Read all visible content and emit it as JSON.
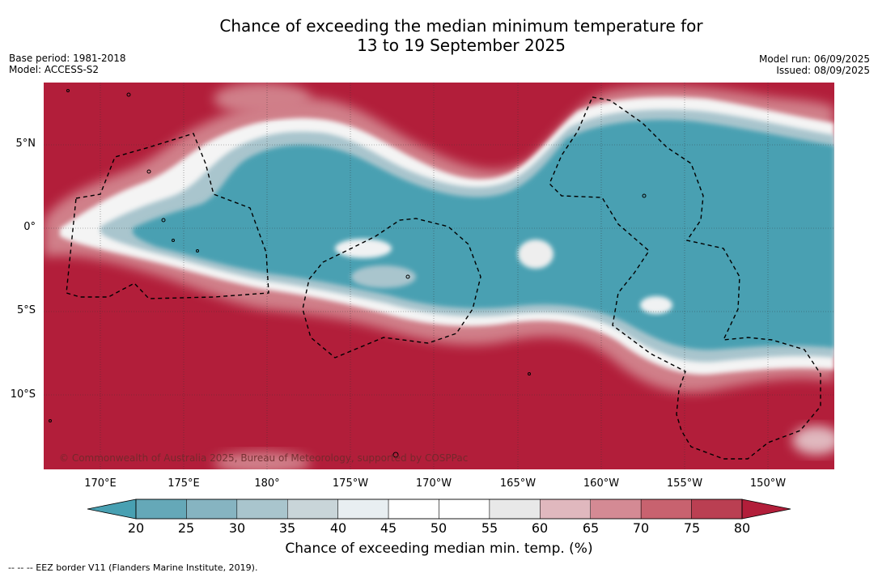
{
  "title": {
    "line1": "Chance of exceeding the median minimum temperature for",
    "line2": "13 to 19 September 2025"
  },
  "meta": {
    "base_period": "Base period: 1981-2018",
    "model": "Model: ACCESS-S2",
    "model_run": "Model run: 06/09/2025",
    "issued": "Issued: 08/09/2025"
  },
  "map": {
    "lon_labels": [
      "170°E",
      "175°E",
      "180°",
      "175°W",
      "170°W",
      "165°W",
      "160°W",
      "155°W",
      "150°W"
    ],
    "lat_labels": [
      "5°N",
      "0°",
      "5°S",
      "10°S"
    ],
    "copyright": "© Commonwealth of Australia 2025, Bureau of Meteorology, supported by COSPPac",
    "colors": {
      "high": "#b21e3a",
      "low": "#48a0b2"
    }
  },
  "colorbar": {
    "ticks": [
      "20",
      "25",
      "30",
      "35",
      "40",
      "45",
      "50",
      "55",
      "60",
      "65",
      "70",
      "75",
      "80"
    ],
    "colors": [
      "#65a8b8",
      "#86b4c1",
      "#a9c5cd",
      "#c9d5d9",
      "#e8eef1",
      "#ffffff",
      "#ffffff",
      "#e8e8e8",
      "#e0b8be",
      "#d48a94",
      "#c8626f",
      "#ba3f52"
    ],
    "under_color": "#48a0b2",
    "over_color": "#b21e3a",
    "label": "Chance of exceeding median min. temp. (%)"
  },
  "footnote": "--  --  -- EEZ border V11 (Flanders Marine Institute, 2019)."
}
